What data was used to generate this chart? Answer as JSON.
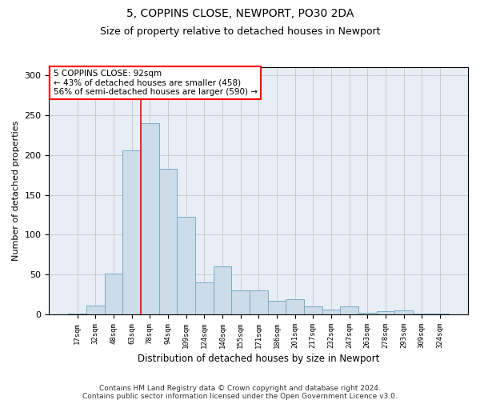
{
  "title": "5, COPPINS CLOSE, NEWPORT, PO30 2DA",
  "subtitle": "Size of property relative to detached houses in Newport",
  "xlabel": "Distribution of detached houses by size in Newport",
  "ylabel": "Number of detached properties",
  "categories": [
    "17sqm",
    "32sqm",
    "48sqm",
    "63sqm",
    "78sqm",
    "94sqm",
    "109sqm",
    "124sqm",
    "140sqm",
    "155sqm",
    "171sqm",
    "186sqm",
    "201sqm",
    "217sqm",
    "232sqm",
    "247sqm",
    "263sqm",
    "278sqm",
    "293sqm",
    "309sqm",
    "324sqm"
  ],
  "values": [
    1,
    11,
    51,
    206,
    240,
    183,
    122,
    40,
    60,
    30,
    30,
    17,
    19,
    10,
    6,
    10,
    2,
    4,
    5,
    1,
    1
  ],
  "bar_color": "#ccdce8",
  "bar_edge_color": "#7aaac8",
  "grid_color": "#cccccc",
  "vline_x_index": 4,
  "vline_color": "red",
  "annotation_line1": "5 COPPINS CLOSE: 92sqm",
  "annotation_line2": "← 43% of detached houses are smaller (458)",
  "annotation_line3": "56% of semi-detached houses are larger (590) →",
  "annotation_box_color": "white",
  "annotation_box_edge_color": "red",
  "ylim": [
    0,
    310
  ],
  "yticks": [
    0,
    50,
    100,
    150,
    200,
    250,
    300
  ],
  "footer_line1": "Contains HM Land Registry data © Crown copyright and database right 2024.",
  "footer_line2": "Contains public sector information licensed under the Open Government Licence v3.0.",
  "bg_color": "#e8eef5",
  "fig_bg_color": "#ffffff",
  "title_fontsize": 10,
  "subtitle_fontsize": 9
}
